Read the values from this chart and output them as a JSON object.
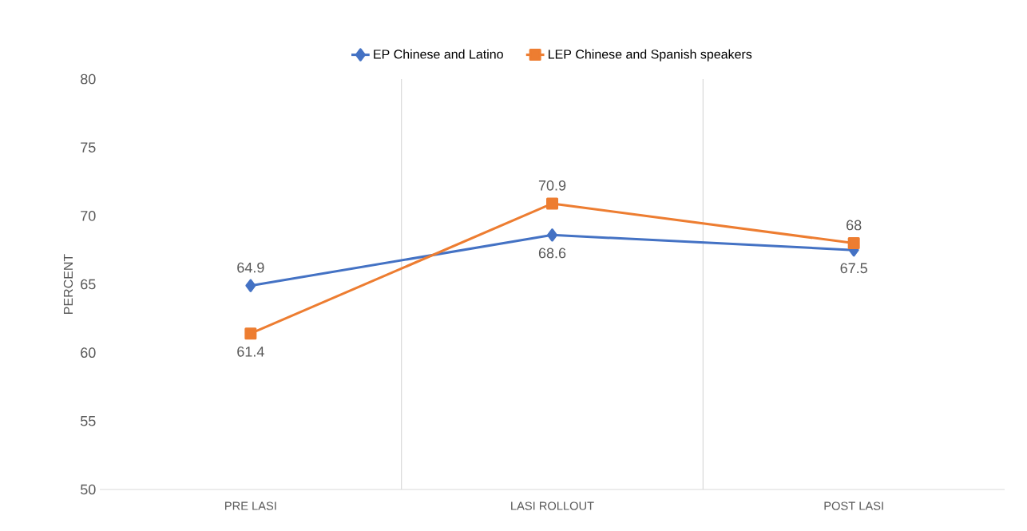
{
  "chart_data": {
    "type": "line",
    "ylabel": "PERCENT",
    "categories": [
      "PRE LASI",
      "LASI ROLLOUT",
      "POST LASI"
    ],
    "series": [
      {
        "name": "EP Chinese and Latino",
        "color": "#4472c4",
        "marker": "diamond",
        "values": [
          64.9,
          68.6,
          67.5
        ]
      },
      {
        "name": "LEP Chinese and Spanish speakers",
        "color": "#ed7d31",
        "marker": "square",
        "values": [
          61.4,
          70.9,
          68
        ]
      }
    ],
    "ylim": [
      50,
      80
    ],
    "yticks": [
      50,
      55,
      60,
      65,
      70,
      75,
      80
    ],
    "grid": "x",
    "legend": "top",
    "data_labels": true,
    "line_style": "solid"
  }
}
